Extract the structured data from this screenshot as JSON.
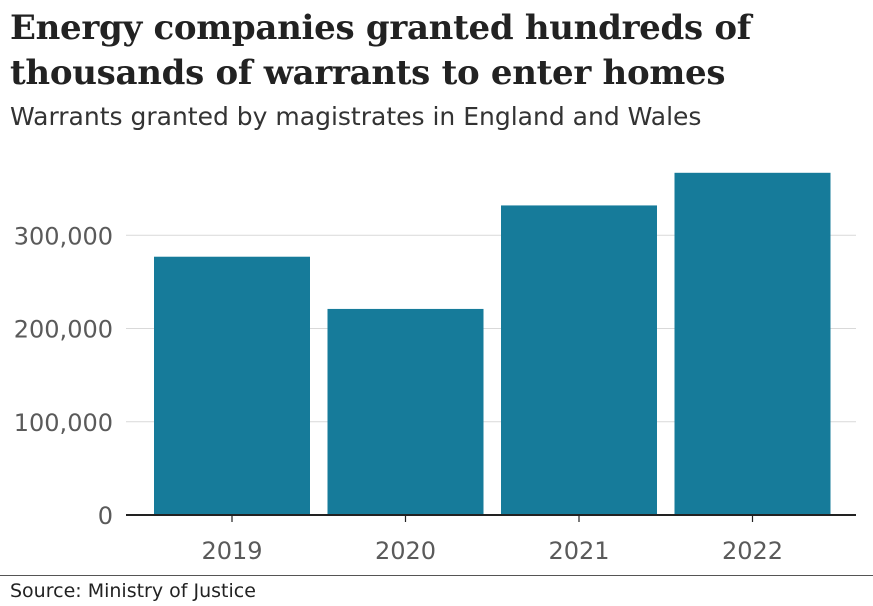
{
  "header": {
    "title": "Energy companies granted hundreds of thousands of warrants to enter homes",
    "subtitle": "Warrants granted by magistrates in England and Wales"
  },
  "footer": {
    "source": "Source: Ministry of Justice"
  },
  "colors": {
    "bar": "#167b9a",
    "grid": "#d9d9d9",
    "axis": "#222222",
    "tick_label": "#5a5a5a"
  },
  "chart_data": {
    "type": "bar",
    "title": "Energy companies granted hundreds of thousands of warrants to enter homes",
    "subtitle": "Warrants granted by magistrates in England and Wales",
    "xlabel": "",
    "ylabel": "",
    "categories": [
      "2019",
      "2020",
      "2021",
      "2022"
    ],
    "values": [
      277000,
      221000,
      332000,
      367000
    ],
    "ylim": [
      0,
      370000
    ],
    "yticks": [
      0,
      100000,
      200000,
      300000
    ],
    "ytick_labels": [
      "0",
      "100,000",
      "200,000",
      "300,000"
    ],
    "grid": true,
    "legend": "none"
  }
}
